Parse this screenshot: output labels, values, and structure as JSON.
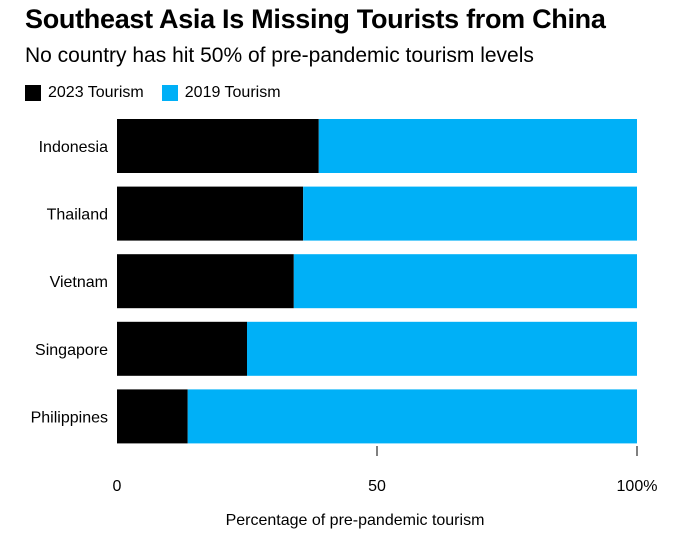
{
  "header": {
    "title": "Southeast Asia Is Missing Tourists from China",
    "subtitle": "No country has hit 50% of pre-pandemic tourism levels"
  },
  "legend": [
    {
      "label": "2023 Tourism",
      "color": "#000000"
    },
    {
      "label": "2019 Tourism",
      "color": "#00b0f7"
    }
  ],
  "chart_data": {
    "type": "bar",
    "orientation": "horizontal",
    "stacked": true,
    "categories": [
      "Indonesia",
      "Thailand",
      "Vietnam",
      "Singapore",
      "Philippines"
    ],
    "series": [
      {
        "name": "2023 Tourism",
        "color": "#000000",
        "values": [
          38.8,
          35.8,
          34.0,
          25.0,
          13.6
        ]
      },
      {
        "name": "2019 Tourism",
        "color": "#00b0f7",
        "values": [
          61.2,
          64.2,
          66.0,
          75.0,
          86.4
        ]
      }
    ],
    "xlabel": "Percentage of pre-pandemic tourism",
    "xlim": [
      0,
      100
    ],
    "xticks": [
      0,
      50,
      100
    ],
    "xtick_labels": [
      "0",
      "50",
      "100%"
    ],
    "grid": false,
    "legend_position": "top-left"
  }
}
